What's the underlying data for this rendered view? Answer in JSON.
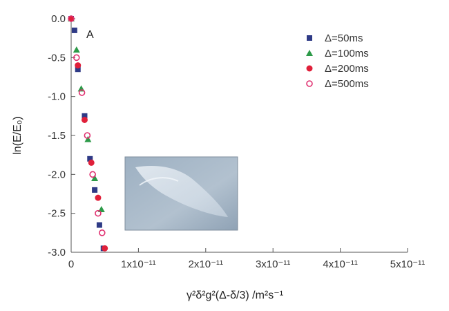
{
  "chart_data": {
    "type": "scatter",
    "annotation": "A",
    "xlabel": "γ²δ²g²(Δ-δ/3) /m²s⁻¹",
    "ylabel": "ln(E/E₀)",
    "xlim": [
      0,
      5e-11
    ],
    "ylim": [
      -3.0,
      0.0
    ],
    "x_ticks": [
      {
        "value": 0,
        "label": "0"
      },
      {
        "value": 1e-11,
        "label": "1x10⁻¹¹"
      },
      {
        "value": 2e-11,
        "label": "2x10⁻¹¹"
      },
      {
        "value": 3e-11,
        "label": "3x10⁻¹¹"
      },
      {
        "value": 4e-11,
        "label": "4x10⁻¹¹"
      },
      {
        "value": 5e-11,
        "label": "5x10⁻¹¹"
      }
    ],
    "y_ticks": [
      {
        "value": 0.0,
        "label": "0.0"
      },
      {
        "value": -0.5,
        "label": "-0.5"
      },
      {
        "value": -1.0,
        "label": "-1.0"
      },
      {
        "value": -1.5,
        "label": "-1.5"
      },
      {
        "value": -2.0,
        "label": "-2.0"
      },
      {
        "value": -2.5,
        "label": "-2.5"
      },
      {
        "value": -3.0,
        "label": "-3.0"
      }
    ],
    "grid": false,
    "legend_position": "top-right",
    "series": [
      {
        "name": "Δ=50ms",
        "marker": "square",
        "color": "#2e3a86",
        "x": [
          0,
          5e-13,
          1e-12,
          2e-12,
          2.8e-12,
          3.5e-12,
          4.2e-12,
          4.8e-12
        ],
        "y": [
          0.0,
          -0.15,
          -0.65,
          -1.25,
          -1.8,
          -2.2,
          -2.65,
          -2.95
        ]
      },
      {
        "name": "Δ=100ms",
        "marker": "triangle",
        "color": "#2c9a48",
        "x": [
          0,
          8e-13,
          1.5e-12,
          2.5e-12,
          3.5e-12,
          4.5e-12
        ],
        "y": [
          0.0,
          -0.4,
          -0.9,
          -1.55,
          -2.05,
          -2.45
        ]
      },
      {
        "name": "Δ=200ms",
        "marker": "circle",
        "color": "#e0203a",
        "x": [
          0,
          1e-12,
          2e-12,
          3e-12,
          4e-12,
          5e-12
        ],
        "y": [
          0.0,
          -0.6,
          -1.3,
          -1.85,
          -2.3,
          -2.95
        ]
      },
      {
        "name": "Δ=500ms",
        "marker": "circle-open",
        "color": "#e03070",
        "x": [
          0,
          8e-13,
          1.6e-12,
          2.4e-12,
          3.2e-12,
          4e-12,
          4.6e-12
        ],
        "y": [
          0.0,
          -0.5,
          -0.95,
          -1.5,
          -2.0,
          -2.5,
          -2.75
        ]
      }
    ]
  }
}
